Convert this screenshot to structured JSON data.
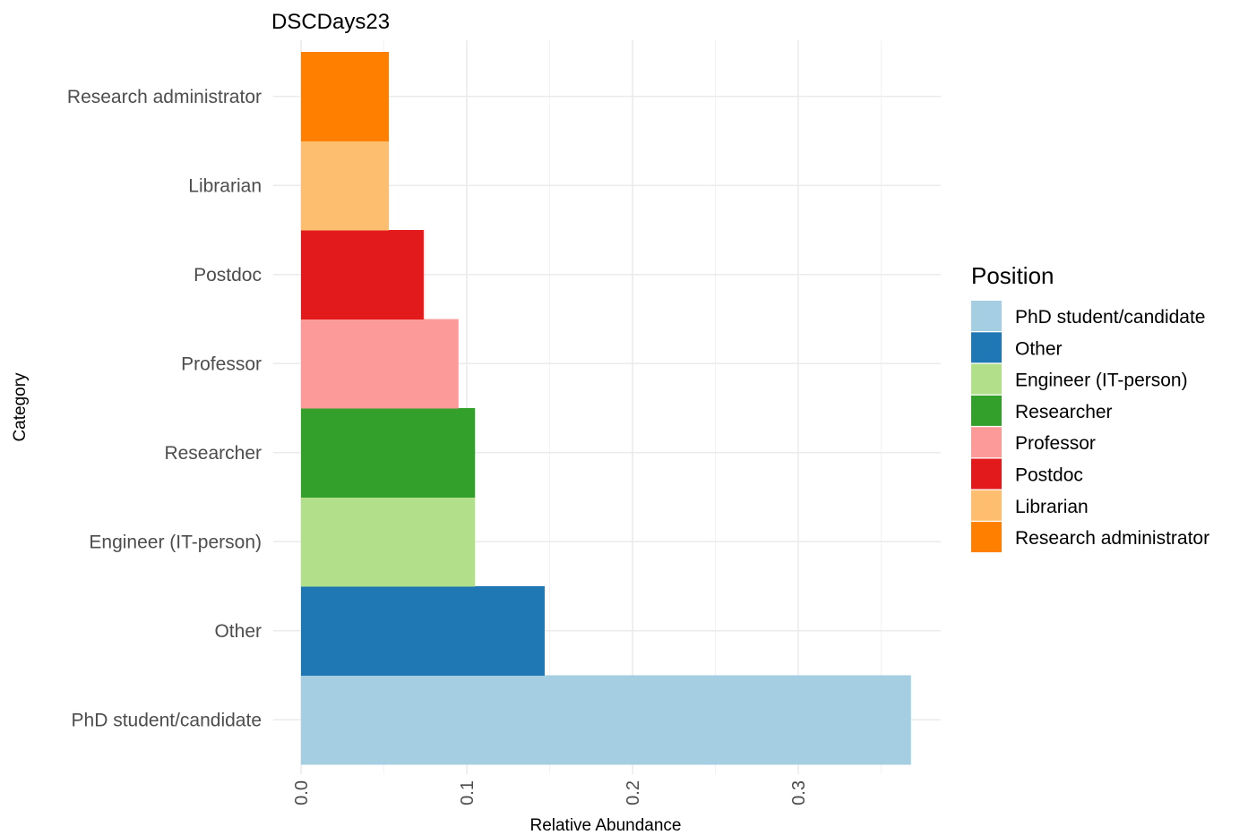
{
  "chart_data": {
    "type": "bar",
    "orientation": "horizontal",
    "title": "DSCDays23",
    "xlabel": "Relative Abundance",
    "ylabel": "Category",
    "categories": [
      "PhD student/candidate",
      "Other",
      "Engineer (IT-person)",
      "Researcher",
      "Professor",
      "Postdoc",
      "Librarian",
      "Research administrator"
    ],
    "values": [
      0.368,
      0.147,
      0.105,
      0.105,
      0.095,
      0.074,
      0.053,
      0.053
    ],
    "colors": [
      "#a6cee3",
      "#1f78b4",
      "#b2df8a",
      "#33a02c",
      "#fb9a99",
      "#e31a1c",
      "#fdbf6f",
      "#ff7f00"
    ],
    "xlim": [
      0,
      0.385
    ],
    "xticks": [
      0.0,
      0.1,
      0.2,
      0.3
    ],
    "xtick_labels": [
      "0.0",
      "0.1",
      "0.2",
      "0.3"
    ],
    "grid": true,
    "legend": {
      "title": "Position",
      "placement": "right",
      "entries": [
        "PhD student/candidate",
        "Other",
        "Engineer (IT-person)",
        "Researcher",
        "Professor",
        "Postdoc",
        "Librarian",
        "Research administrator"
      ]
    }
  }
}
